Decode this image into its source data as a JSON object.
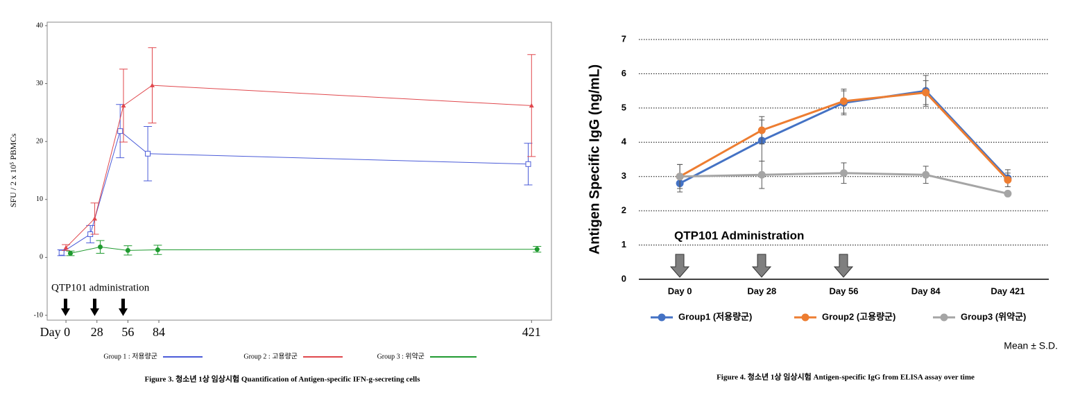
{
  "chart_data": [
    {
      "type": "line",
      "y_label": "SFU / 2 x 10⁵ PBMCs",
      "annotation": "QTP101 administration",
      "caption": "Figure 3. 청소년 1상 임상시험 Quantification of Antigen-specific IFN-g-secreting cells",
      "xlim": [
        -17,
        439
      ],
      "xticks": [
        {
          "value": 0,
          "label": "Day 0"
        },
        28,
        56,
        84,
        421
      ],
      "ylim": [
        -10,
        40
      ],
      "yticks": [
        -10,
        0,
        10,
        20,
        30,
        40
      ],
      "grid": false,
      "series": [
        {
          "name": "Group 1 : 저용량군",
          "color": "#4a5bd8",
          "marker": "square",
          "x": [
            -4,
            22,
            49,
            74,
            418
          ],
          "values": [
            0.8,
            4.0,
            21.8,
            17.9,
            16.1
          ],
          "errors": [
            0.5,
            1.5,
            4.6,
            4.7,
            3.6
          ]
        },
        {
          "name": "Group 2 : 고용량군",
          "color": "#e0474c",
          "marker": "triangle",
          "x": [
            0,
            26,
            52,
            78,
            421
          ],
          "values": [
            1.7,
            6.7,
            26.2,
            29.7,
            26.2
          ],
          "errors": [
            0.5,
            2.7,
            6.3,
            6.5,
            8.8
          ]
        },
        {
          "name": "Group 3 : 위약군",
          "color": "#1f9a2f",
          "marker": "circle",
          "x": [
            4,
            31,
            56,
            83,
            426
          ],
          "values": [
            0.7,
            1.8,
            1.2,
            1.3,
            1.4
          ],
          "errors": [
            0.4,
            1.1,
            0.8,
            0.8,
            0.5
          ]
        }
      ]
    },
    {
      "type": "line",
      "y_label": "Antigen Specific IgG (ng/mL)",
      "annotation": "QTP101 Administration",
      "note": "Mean ± S.D.",
      "caption": "Figure 4. 청소년 1상 임상시험 Antigen-specific IgG from ELISA assay over time",
      "categories": [
        "Day 0",
        "Day 28",
        "Day 56",
        "Day 84",
        "Day 421"
      ],
      "ylim": [
        0,
        7
      ],
      "yticks": [
        0,
        1,
        2,
        3,
        4,
        5,
        6,
        7
      ],
      "grid": true,
      "series": [
        {
          "name": "Group1 (저용량군)",
          "color": "#4472c4",
          "marker": "circle",
          "values": [
            2.8,
            4.05,
            5.15,
            5.5,
            2.95
          ],
          "errors": [
            0.25,
            0.6,
            0.35,
            0.45,
            0.25
          ]
        },
        {
          "name": "Group2 (고용량군)",
          "color": "#ed7d31",
          "marker": "circle",
          "values": [
            3.0,
            4.35,
            5.2,
            5.45,
            2.9
          ],
          "errors": [
            0.35,
            0.4,
            0.35,
            0.35,
            0.2
          ]
        },
        {
          "name": "Group3 (위약군)",
          "color": "#a5a5a5",
          "marker": "circle",
          "values": [
            3.0,
            3.05,
            3.1,
            3.05,
            2.5
          ],
          "errors": [
            0.35,
            0.4,
            0.3,
            0.25,
            0.05
          ]
        }
      ]
    }
  ]
}
